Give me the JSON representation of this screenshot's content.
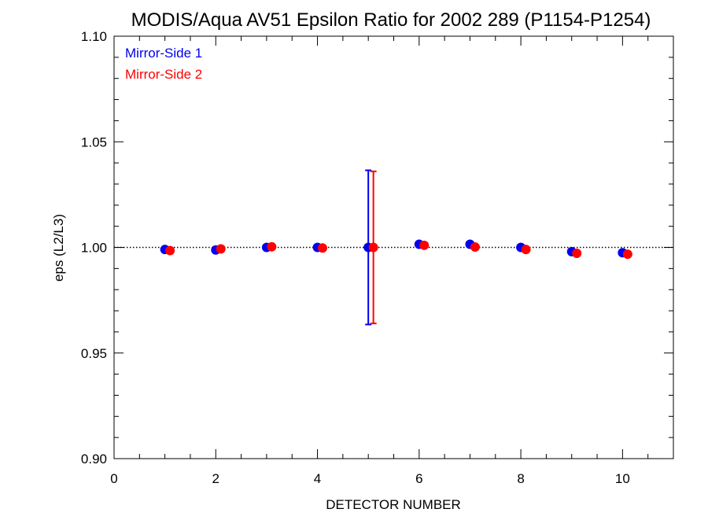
{
  "chart_data": {
    "type": "scatter",
    "title": "MODIS/Aqua AV51 Epsilon Ratio for 2002 289 (P1154-P1254)",
    "xlabel": "DETECTOR NUMBER",
    "ylabel": "eps (L2/L3)",
    "xlim": [
      0,
      11
    ],
    "ylim": [
      0.9,
      1.1
    ],
    "x_ticks": [
      0,
      2,
      4,
      6,
      8,
      10
    ],
    "x_tick_labels": [
      "0",
      "2",
      "4",
      "6",
      "8",
      "10"
    ],
    "y_ticks": [
      0.9,
      0.95,
      1.0,
      1.05,
      1.1
    ],
    "y_tick_labels": [
      "0.90",
      "0.95",
      "1.00",
      "1.05",
      "1.10"
    ],
    "reference_line": {
      "y": 1.0,
      "style": "dotted"
    },
    "legend_position": "top-left",
    "series": [
      {
        "name": "Mirror-Side 1",
        "color": "#0000ee",
        "x": [
          1,
          2,
          3,
          4,
          5,
          6,
          7,
          8,
          9,
          10
        ],
        "y": [
          0.999,
          0.9988,
          1.0,
          1.0,
          1.0,
          1.0015,
          1.0015,
          1.0,
          0.998,
          0.9975
        ],
        "error_bars": [
          {
            "x": 5,
            "low": 0.9635,
            "high": 1.0365
          }
        ]
      },
      {
        "name": "Mirror-Side 2",
        "color": "#ff0000",
        "x": [
          1.1,
          2.1,
          3.1,
          4.1,
          5.1,
          6.1,
          7.1,
          8.1,
          9.1,
          10.1
        ],
        "y": [
          0.9985,
          0.9993,
          1.0003,
          0.9997,
          1.0,
          1.001,
          1.0002,
          0.999,
          0.9972,
          0.9968
        ],
        "error_bars": [
          {
            "x": 5.1,
            "low": 0.964,
            "high": 1.036
          }
        ]
      }
    ]
  }
}
